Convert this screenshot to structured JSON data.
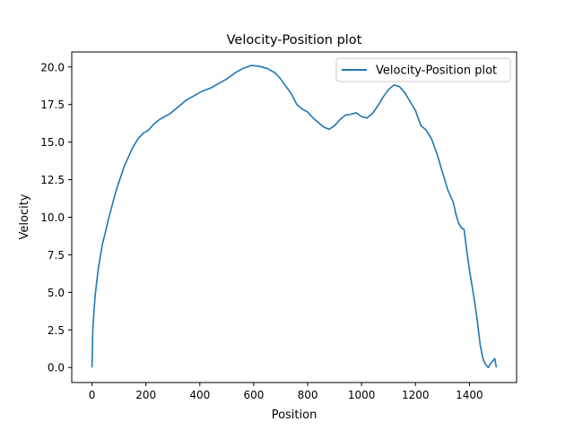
{
  "colors": {
    "line": "#1f77b4",
    "axes": "#000000",
    "background": "#ffffff",
    "legend_border": "#cccccc"
  },
  "chart_data": {
    "type": "line",
    "title": "Velocity-Position plot",
    "xlabel": "Position",
    "ylabel": "Velocity",
    "xlim": [
      -75,
      1575
    ],
    "ylim": [
      -1.0,
      21.0
    ],
    "x_ticks": [
      0,
      200,
      400,
      600,
      800,
      1000,
      1200,
      1400
    ],
    "y_ticks": [
      0.0,
      2.5,
      5.0,
      7.5,
      10.0,
      12.5,
      15.0,
      17.5,
      20.0
    ],
    "x_tick_labels": [
      "0",
      "200",
      "400",
      "600",
      "800",
      "1000",
      "1200",
      "1400"
    ],
    "y_tick_labels": [
      "0.0",
      "2.5",
      "5.0",
      "7.5",
      "10.0",
      "12.5",
      "15.0",
      "17.5",
      "20.0"
    ],
    "grid": false,
    "legend_position": "upper-right",
    "series": [
      {
        "name": "Velocity-Position plot",
        "x": [
          0,
          1,
          2,
          3,
          5,
          8,
          12,
          17,
          23,
          30,
          40,
          50,
          60,
          75,
          90,
          105,
          120,
          135,
          150,
          170,
          190,
          210,
          230,
          250,
          270,
          290,
          310,
          330,
          350,
          380,
          410,
          440,
          470,
          500,
          530,
          560,
          590,
          620,
          650,
          680,
          700,
          720,
          740,
          760,
          780,
          800,
          820,
          840,
          860,
          880,
          900,
          920,
          940,
          960,
          980,
          1000,
          1020,
          1040,
          1060,
          1080,
          1100,
          1120,
          1140,
          1160,
          1180,
          1200,
          1210,
          1220,
          1240,
          1260,
          1280,
          1300,
          1320,
          1340,
          1350,
          1360,
          1370,
          1380,
          1390,
          1400,
          1410,
          1420,
          1430,
          1440,
          1450,
          1460,
          1470,
          1480,
          1485,
          1490,
          1494,
          1497,
          1500
        ],
        "y": [
          0.0,
          0.7,
          1.5,
          2.4,
          3.0,
          3.9,
          4.8,
          5.6,
          6.5,
          7.3,
          8.3,
          9.0,
          9.8,
          10.8,
          11.8,
          12.6,
          13.4,
          14.0,
          14.6,
          15.2,
          15.6,
          15.8,
          16.2,
          16.5,
          16.7,
          16.9,
          17.2,
          17.5,
          17.8,
          18.1,
          18.4,
          18.6,
          18.9,
          19.2,
          19.6,
          19.9,
          20.1,
          20.05,
          19.9,
          19.6,
          19.2,
          18.7,
          18.2,
          17.5,
          17.2,
          17.0,
          16.6,
          16.3,
          16.0,
          15.85,
          16.1,
          16.5,
          16.8,
          16.85,
          16.95,
          16.7,
          16.6,
          16.9,
          17.4,
          18.0,
          18.5,
          18.8,
          18.7,
          18.3,
          17.7,
          17.1,
          16.6,
          16.1,
          15.8,
          15.2,
          14.2,
          13.0,
          11.8,
          11.0,
          10.2,
          9.6,
          9.3,
          9.2,
          7.8,
          6.5,
          5.4,
          4.3,
          3.0,
          1.5,
          0.6,
          0.2,
          0.0,
          0.3,
          0.4,
          0.5,
          0.6,
          0.3,
          0.0
        ]
      }
    ]
  }
}
